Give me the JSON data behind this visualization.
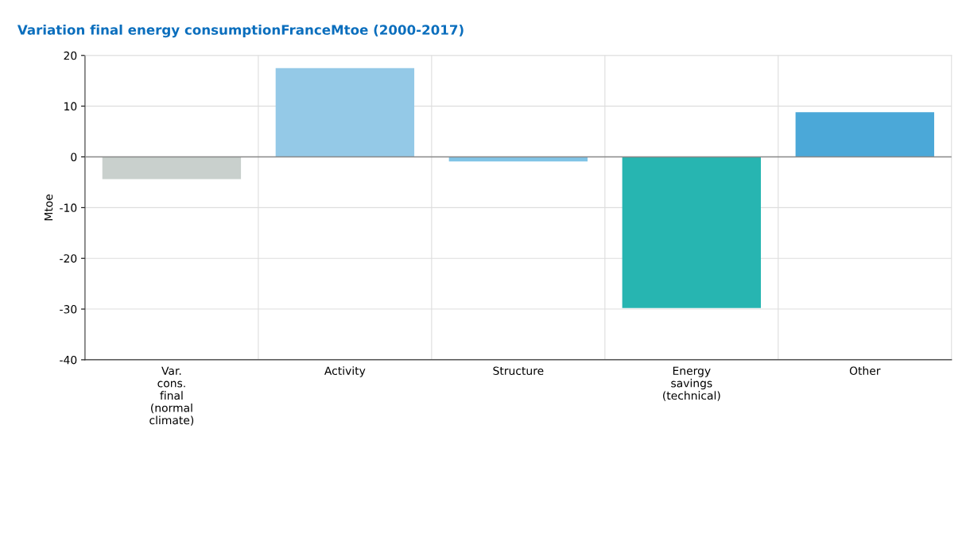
{
  "chart_data": {
    "type": "bar",
    "title": "Variation final energy consumptionFranceMtoe (2000-2017)",
    "ylabel": "Mtoe",
    "categories": [
      "Var.\ncons.\nfinal\n(normal\nclimate)",
      "Activity",
      "Structure",
      "Energy\nsavings\n(technical)",
      "Other"
    ],
    "values": [
      -4.4,
      17.5,
      -0.9,
      -29.8,
      8.8
    ],
    "colors": [
      "#c9d0cd",
      "#94c9e7",
      "#80c4e6",
      "#27b5b1",
      "#4ba8d8"
    ],
    "ylim": [
      -40,
      20
    ],
    "yticks": [
      -40,
      -30,
      -20,
      -10,
      0,
      10,
      20
    ],
    "grid": true,
    "ref_lines": [
      {
        "axis": "y",
        "value": 0,
        "color": "#888888"
      }
    ]
  }
}
